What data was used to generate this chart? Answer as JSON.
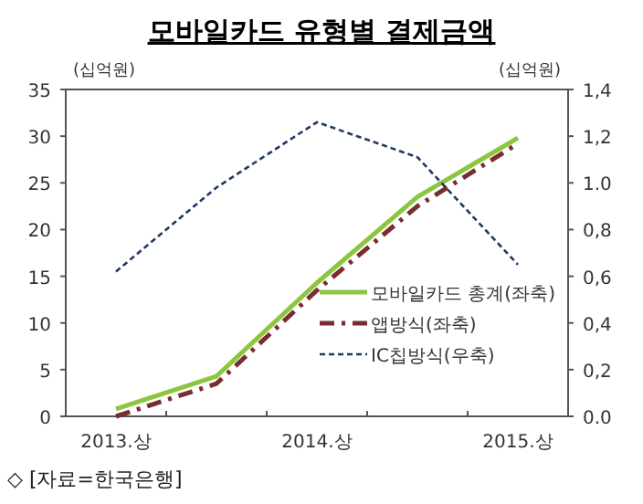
{
  "chart_data": {
    "type": "line",
    "title": "모바일카드 유형별 결제금액",
    "ylabel": "(십억원)",
    "y2label": "(십억원)",
    "categories": [
      "2013.상",
      null,
      "2014.상",
      null,
      "2015.상"
    ],
    "series": [
      {
        "name": "모바일카드 총계(좌축)",
        "color": "#8cc63f",
        "line_style": "solid",
        "values": [
          0.8,
          4.3,
          14.3,
          23.5,
          29.8
        ]
      },
      {
        "name": "앱방식(좌축)",
        "color": "#7b2c2c",
        "line_style": "dashdot",
        "values": [
          0,
          3.5,
          13.5,
          22.5,
          29.2
        ]
      },
      {
        "name": "IC칩방식(우축)",
        "color": "#1f3864",
        "line_style": "dashed",
        "axis": "y2",
        "values": [
          0.62,
          0.98,
          1.26,
          1.11,
          0.65
        ]
      }
    ],
    "ylim": [
      0,
      35
    ],
    "yticks": [
      0,
      5,
      10,
      15,
      20,
      25,
      30,
      35
    ],
    "y2lim": [
      0,
      1.4
    ],
    "y2ticks": [
      {
        "value": 0,
        "label": "0.0"
      },
      {
        "value": 0.2,
        "label": "0,2"
      },
      {
        "value": 0.4,
        "label": "0,4"
      },
      {
        "value": 0.6,
        "label": "0,6"
      },
      {
        "value": 0.8,
        "label": "0,8"
      },
      {
        "value": 1.0,
        "label": "1.0"
      },
      {
        "value": 1.2,
        "label": "1,2"
      },
      {
        "value": 1.4,
        "label": "1,4"
      }
    ],
    "legend": "bottom right",
    "grid": false,
    "annotations": [
      "◇ [자료=한국은행]"
    ]
  }
}
